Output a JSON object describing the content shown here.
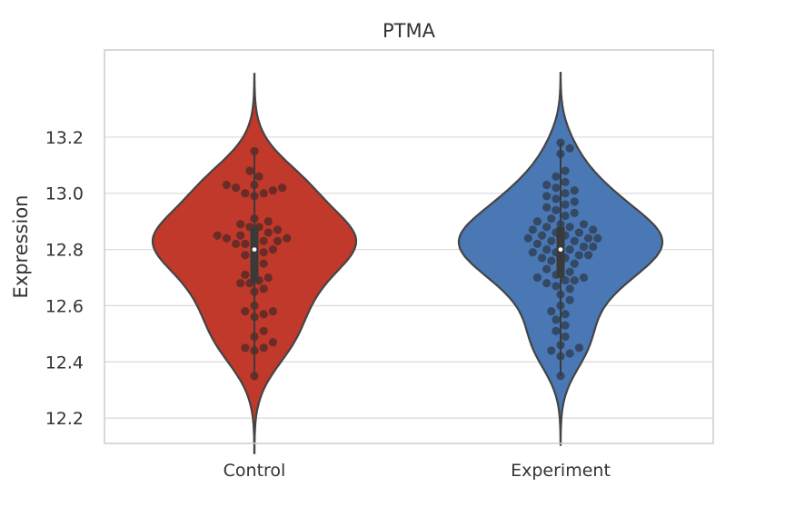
{
  "chart_data": {
    "type": "violin",
    "title": "PTMA",
    "xlabel": "",
    "ylabel": "Expression",
    "ylim": [
      12.11,
      13.51
    ],
    "yticks": [
      "12.2",
      "12.4",
      "12.6",
      "12.8",
      "13.0",
      "13.2"
    ],
    "categories": [
      "Control",
      "Experiment"
    ],
    "grid": true,
    "series": [
      {
        "category": "Control",
        "color": "#c0392b",
        "median": 12.8,
        "q1": 12.68,
        "q3": 12.88,
        "whisker_low": 12.35,
        "whisker_high": 13.15,
        "min": 12.35,
        "max": 13.15,
        "points": [
          13.15,
          13.08,
          13.06,
          13.03,
          13.03,
          13.02,
          13.02,
          13.01,
          13.0,
          13.0,
          12.99,
          12.91,
          12.9,
          12.89,
          12.88,
          12.88,
          12.87,
          12.86,
          12.85,
          12.85,
          12.85,
          12.84,
          12.84,
          12.83,
          12.83,
          12.82,
          12.82,
          12.81,
          12.8,
          12.79,
          12.78,
          12.77,
          12.75,
          12.73,
          12.71,
          12.7,
          12.69,
          12.68,
          12.68,
          12.66,
          12.65,
          12.6,
          12.58,
          12.58,
          12.57,
          12.56,
          12.51,
          12.49,
          12.47,
          12.45,
          12.45,
          12.44,
          12.35
        ]
      },
      {
        "category": "Experiment",
        "color": "#4a78b5",
        "median": 12.8,
        "q1": 12.7,
        "q3": 12.88,
        "whisker_low": 12.35,
        "whisker_high": 13.18,
        "min": 12.35,
        "max": 13.18,
        "points": [
          13.18,
          13.16,
          13.14,
          13.08,
          13.06,
          13.04,
          13.03,
          13.02,
          13.01,
          13.0,
          12.99,
          12.98,
          12.97,
          12.96,
          12.95,
          12.94,
          12.93,
          12.92,
          12.91,
          12.9,
          12.89,
          12.89,
          12.88,
          12.88,
          12.87,
          12.87,
          12.86,
          12.86,
          12.85,
          12.85,
          12.84,
          12.84,
          12.84,
          12.83,
          12.83,
          12.82,
          12.82,
          12.81,
          12.81,
          12.8,
          12.8,
          12.79,
          12.79,
          12.78,
          12.78,
          12.77,
          12.77,
          12.76,
          12.75,
          12.74,
          12.73,
          12.72,
          12.71,
          12.7,
          12.7,
          12.69,
          12.69,
          12.68,
          12.67,
          12.66,
          12.64,
          12.62,
          12.6,
          12.58,
          12.57,
          12.55,
          12.53,
          12.51,
          12.49,
          12.46,
          12.45,
          12.44,
          12.43,
          12.42,
          12.35
        ]
      }
    ]
  }
}
